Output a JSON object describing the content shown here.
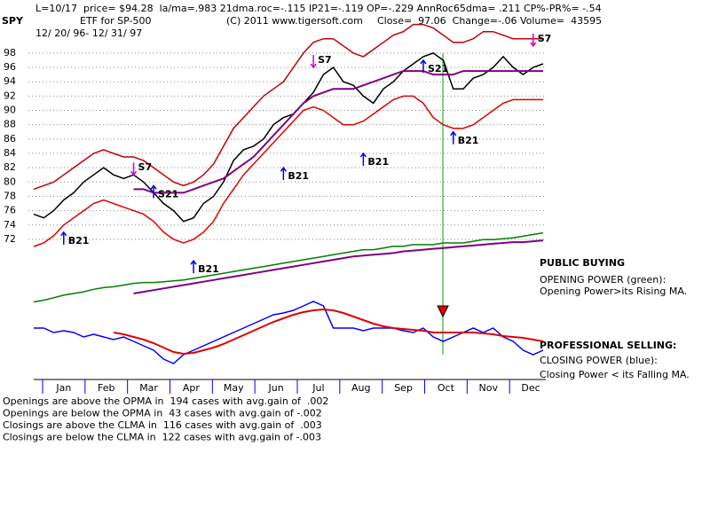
{
  "header": {
    "line1": "L=10/17  price= $94.28  la/ma=.983 21dma.roc=-.115 IP21=-.119 OP=-.229 AnnRoc65dma= .211 CP%-PR%= -.54",
    "symbol": "SPY",
    "name": "ETF for SP-500",
    "copyright": "(C) 2011 www.tigersoft.com",
    "quote": "Close=  97.06  Change=-.06 Volume=  43595",
    "range": "12/ 20/ 96- 12/ 31/ 97"
  },
  "chart_data": [
    {
      "type": "line",
      "ylim": [
        71,
        103
      ],
      "yticks": [
        72,
        74,
        76,
        78,
        80,
        82,
        84,
        86,
        88,
        90,
        92,
        94,
        96,
        98
      ],
      "grid": true,
      "series": [
        {
          "color": "#000000",
          "values": [
            75.5,
            75,
            76,
            77.5,
            78.5,
            80,
            81,
            82,
            81,
            80.5,
            81,
            80,
            78.5,
            77,
            76,
            74.5,
            75,
            77,
            78,
            80,
            83,
            84.5,
            85,
            86,
            88,
            89,
            89.5,
            91,
            92.5,
            95,
            96,
            94,
            93.5,
            92,
            91,
            93,
            94,
            95.5,
            96.5,
            97.5,
            98,
            97,
            93,
            93,
            94.5,
            95,
            96,
            97.5,
            96,
            95,
            96,
            96.5
          ]
        },
        {
          "color": "#800080",
          "values": [
            null,
            null,
            null,
            null,
            null,
            null,
            null,
            null,
            null,
            null,
            79,
            79,
            78.5,
            78.5,
            78.5,
            78.5,
            79,
            79.5,
            80,
            80.5,
            81.5,
            82.5,
            83.5,
            85,
            86.5,
            88,
            89.5,
            91,
            92,
            92.5,
            93,
            93,
            93,
            93.5,
            94,
            94.5,
            95,
            95.5,
            95.5,
            95.5,
            95,
            95,
            95,
            95.5,
            95.5,
            95.5,
            95.5,
            95.5,
            95.5,
            95.5,
            95.5,
            95.5
          ]
        },
        {
          "color": "#c00000",
          "values": [
            79,
            79.5,
            80,
            81,
            82,
            83,
            84,
            84.5,
            84,
            83.5,
            83.5,
            83,
            82,
            81,
            80,
            79.5,
            80,
            81,
            82.5,
            85,
            87.5,
            89,
            90.5,
            92,
            93,
            94,
            96,
            98,
            99.5,
            100,
            100,
            99,
            98,
            97.5,
            98.5,
            99.5,
            100.5,
            101,
            102,
            102,
            101.5,
            100.5,
            99.5,
            99.5,
            100,
            101,
            101,
            100.5,
            100,
            100,
            100,
            100
          ]
        },
        {
          "color": "#e00000",
          "values": [
            71,
            71.5,
            72.5,
            74,
            75,
            76,
            77,
            77.5,
            77,
            76.5,
            76,
            75.5,
            74.5,
            73,
            72,
            71.5,
            72,
            73,
            74.5,
            77,
            79,
            81,
            82.5,
            84,
            85.5,
            87,
            88.5,
            90,
            90.5,
            90,
            89,
            88,
            88,
            88.5,
            89.5,
            90.5,
            91.5,
            92,
            92,
            91,
            89,
            88,
            87.5,
            87.5,
            88,
            89,
            90,
            91,
            91.5,
            91.5,
            91.5,
            91.5
          ]
        }
      ],
      "signals": [
        {
          "label": "B21",
          "index": 3,
          "value": 73,
          "color": "#0000ff"
        },
        {
          "label": "S7",
          "index": 10,
          "value": 81,
          "color": "#d000d0"
        },
        {
          "label": "S21",
          "index": 12,
          "value": 79.5,
          "color": "#0000ff"
        },
        {
          "label": "B21",
          "index": 16,
          "value": 69,
          "color": "#0000ff"
        },
        {
          "label": "B21",
          "index": 25,
          "value": 82,
          "color": "#0000ff"
        },
        {
          "label": "S7",
          "index": 28,
          "value": 96,
          "color": "#d000d0"
        },
        {
          "label": "B21",
          "index": 33,
          "value": 84,
          "color": "#0000ff"
        },
        {
          "label": "S21",
          "index": 39,
          "value": 97,
          "color": "#0000ff"
        },
        {
          "label": "B21",
          "index": 42,
          "value": 87,
          "color": "#0000ff"
        },
        {
          "label": "S7",
          "index": 50,
          "value": 99,
          "color": "#d000d0"
        }
      ]
    },
    {
      "type": "line",
      "ylim": [
        0,
        100
      ],
      "series": [
        {
          "color": "#008000",
          "values": [
            10,
            12,
            15,
            18,
            20,
            22,
            25,
            27,
            28,
            30,
            32,
            33,
            33,
            34,
            35,
            36,
            38,
            40,
            42,
            44,
            46,
            48,
            50,
            52,
            54,
            56,
            58,
            60,
            62,
            64,
            66,
            68,
            70,
            72,
            72,
            74,
            76,
            76,
            78,
            78,
            78,
            80,
            80,
            80,
            82,
            84,
            84,
            85,
            86,
            88,
            90,
            92
          ]
        },
        {
          "color": "#800080",
          "values": [
            null,
            null,
            null,
            null,
            null,
            null,
            null,
            null,
            null,
            null,
            20,
            22,
            24,
            26,
            28,
            30,
            32,
            34,
            36,
            38,
            40,
            42,
            44,
            46,
            48,
            50,
            52,
            54,
            56,
            58,
            60,
            62,
            64,
            65,
            66,
            67,
            68,
            70,
            71,
            72,
            73,
            74,
            75,
            76,
            77,
            78,
            79,
            80,
            81,
            81,
            82,
            83
          ]
        }
      ]
    },
    {
      "type": "line",
      "ylim": [
        0,
        100
      ],
      "months": [
        "Jan",
        "Feb",
        "Mar",
        "Apr",
        "May",
        "Jun",
        "Jul",
        "Aug",
        "Sep",
        "Oct",
        "Nov",
        "Dec"
      ],
      "series": [
        {
          "color": "#0000ff",
          "values": [
            55,
            55,
            50,
            52,
            50,
            45,
            48,
            45,
            42,
            45,
            40,
            35,
            30,
            20,
            15,
            25,
            30,
            35,
            40,
            45,
            50,
            55,
            60,
            65,
            70,
            72,
            75,
            80,
            85,
            80,
            55,
            55,
            55,
            52,
            55,
            55,
            55,
            52,
            50,
            55,
            45,
            40,
            45,
            50,
            55,
            50,
            55,
            45,
            40,
            30,
            25,
            30
          ]
        },
        {
          "color": "#e00000",
          "values": [
            null,
            null,
            null,
            null,
            null,
            null,
            null,
            null,
            50,
            48,
            45,
            42,
            38,
            33,
            28,
            26,
            27,
            30,
            33,
            37,
            42,
            47,
            52,
            57,
            62,
            66,
            70,
            73,
            75,
            76,
            75,
            72,
            68,
            64,
            60,
            57,
            55,
            54,
            53,
            52,
            50,
            50,
            50,
            50,
            50,
            49,
            48,
            46,
            45,
            44,
            42,
            40
          ]
        }
      ]
    }
  ],
  "notes": [
    "PUBLIC BUYING",
    "OPENING POWER (green):",
    "Opening Power>its Rising MA.",
    "PROFESSIONAL SELLING:",
    "CLOSING POWER (blue):",
    "Closing Power < its Falling MA."
  ],
  "stats": [
    "Openings are above the OPMA in  194 cases with avg.gain of  .002",
    "Openings are below the OPMA in  43 cases with avg.gain of -.002",
    "Closings are above the CLMA in  116 cases with avg.gain of  .003",
    "Closings are below the CLMA in  122 cases with avg.gain of -.003"
  ]
}
